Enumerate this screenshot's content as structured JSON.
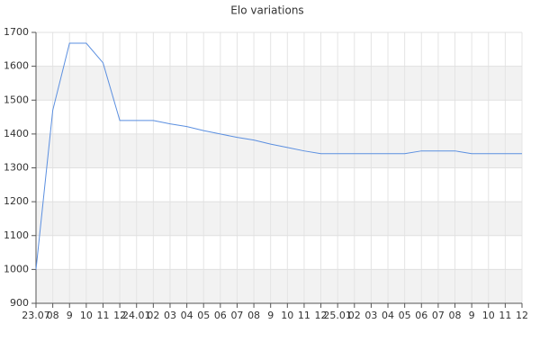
{
  "chart_data": {
    "type": "line",
    "title": "Elo variations",
    "categories": [
      "23.07",
      "08",
      "9",
      "10",
      "11",
      "12",
      "24.01",
      "02",
      "03",
      "04",
      "05",
      "06",
      "07",
      "08",
      "9",
      "10",
      "11",
      "12",
      "25.01",
      "02",
      "03",
      "04",
      "05",
      "06",
      "07",
      "08",
      "9",
      "10",
      "11",
      "12"
    ],
    "series": [
      {
        "name": "Elo",
        "color": "#5b8fe0",
        "values": [
          1000,
          1470,
          1668,
          1668,
          1610,
          1440,
          1440,
          1440,
          1430,
          1422,
          1410,
          1400,
          1390,
          1382,
          1370,
          1360,
          1350,
          1342,
          1342,
          1342,
          1342,
          1342,
          1342,
          1350,
          1350,
          1350,
          1342,
          1342,
          1342,
          1342
        ]
      }
    ],
    "ylim": [
      900,
      1700
    ],
    "yticks": [
      900,
      1000,
      1100,
      1200,
      1300,
      1400,
      1500,
      1600,
      1700
    ],
    "grid": true
  }
}
